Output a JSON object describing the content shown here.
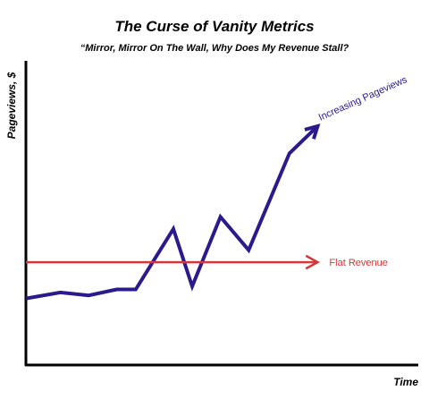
{
  "chart_data": {
    "type": "line",
    "title": "The Curse of Vanity Metrics",
    "subtitle": "“Mirror, Mirror On The Wall, Why Does My Revenue Stall?",
    "xlabel": "Time",
    "ylabel": "Pageviews, $",
    "xlim": [
      0,
      100
    ],
    "ylim": [
      0,
      100
    ],
    "grid": false,
    "axis_ticks": false,
    "series": [
      {
        "name": "Increasing Pageviews",
        "color": "#2a1a8c",
        "arrow_end": true,
        "points": [
          {
            "x": 0,
            "y": 22
          },
          {
            "x": 11,
            "y": 24
          },
          {
            "x": 20,
            "y": 23
          },
          {
            "x": 29,
            "y": 25
          },
          {
            "x": 35,
            "y": 25
          },
          {
            "x": 47,
            "y": 45
          },
          {
            "x": 53,
            "y": 26
          },
          {
            "x": 62,
            "y": 49
          },
          {
            "x": 71,
            "y": 38
          },
          {
            "x": 84,
            "y": 70
          },
          {
            "x": 93,
            "y": 79
          }
        ]
      },
      {
        "name": "Flat Revenue",
        "color": "#d03a3a",
        "arrow_end": true,
        "points": [
          {
            "x": 0,
            "y": 34
          },
          {
            "x": 93,
            "y": 34
          }
        ]
      }
    ]
  }
}
